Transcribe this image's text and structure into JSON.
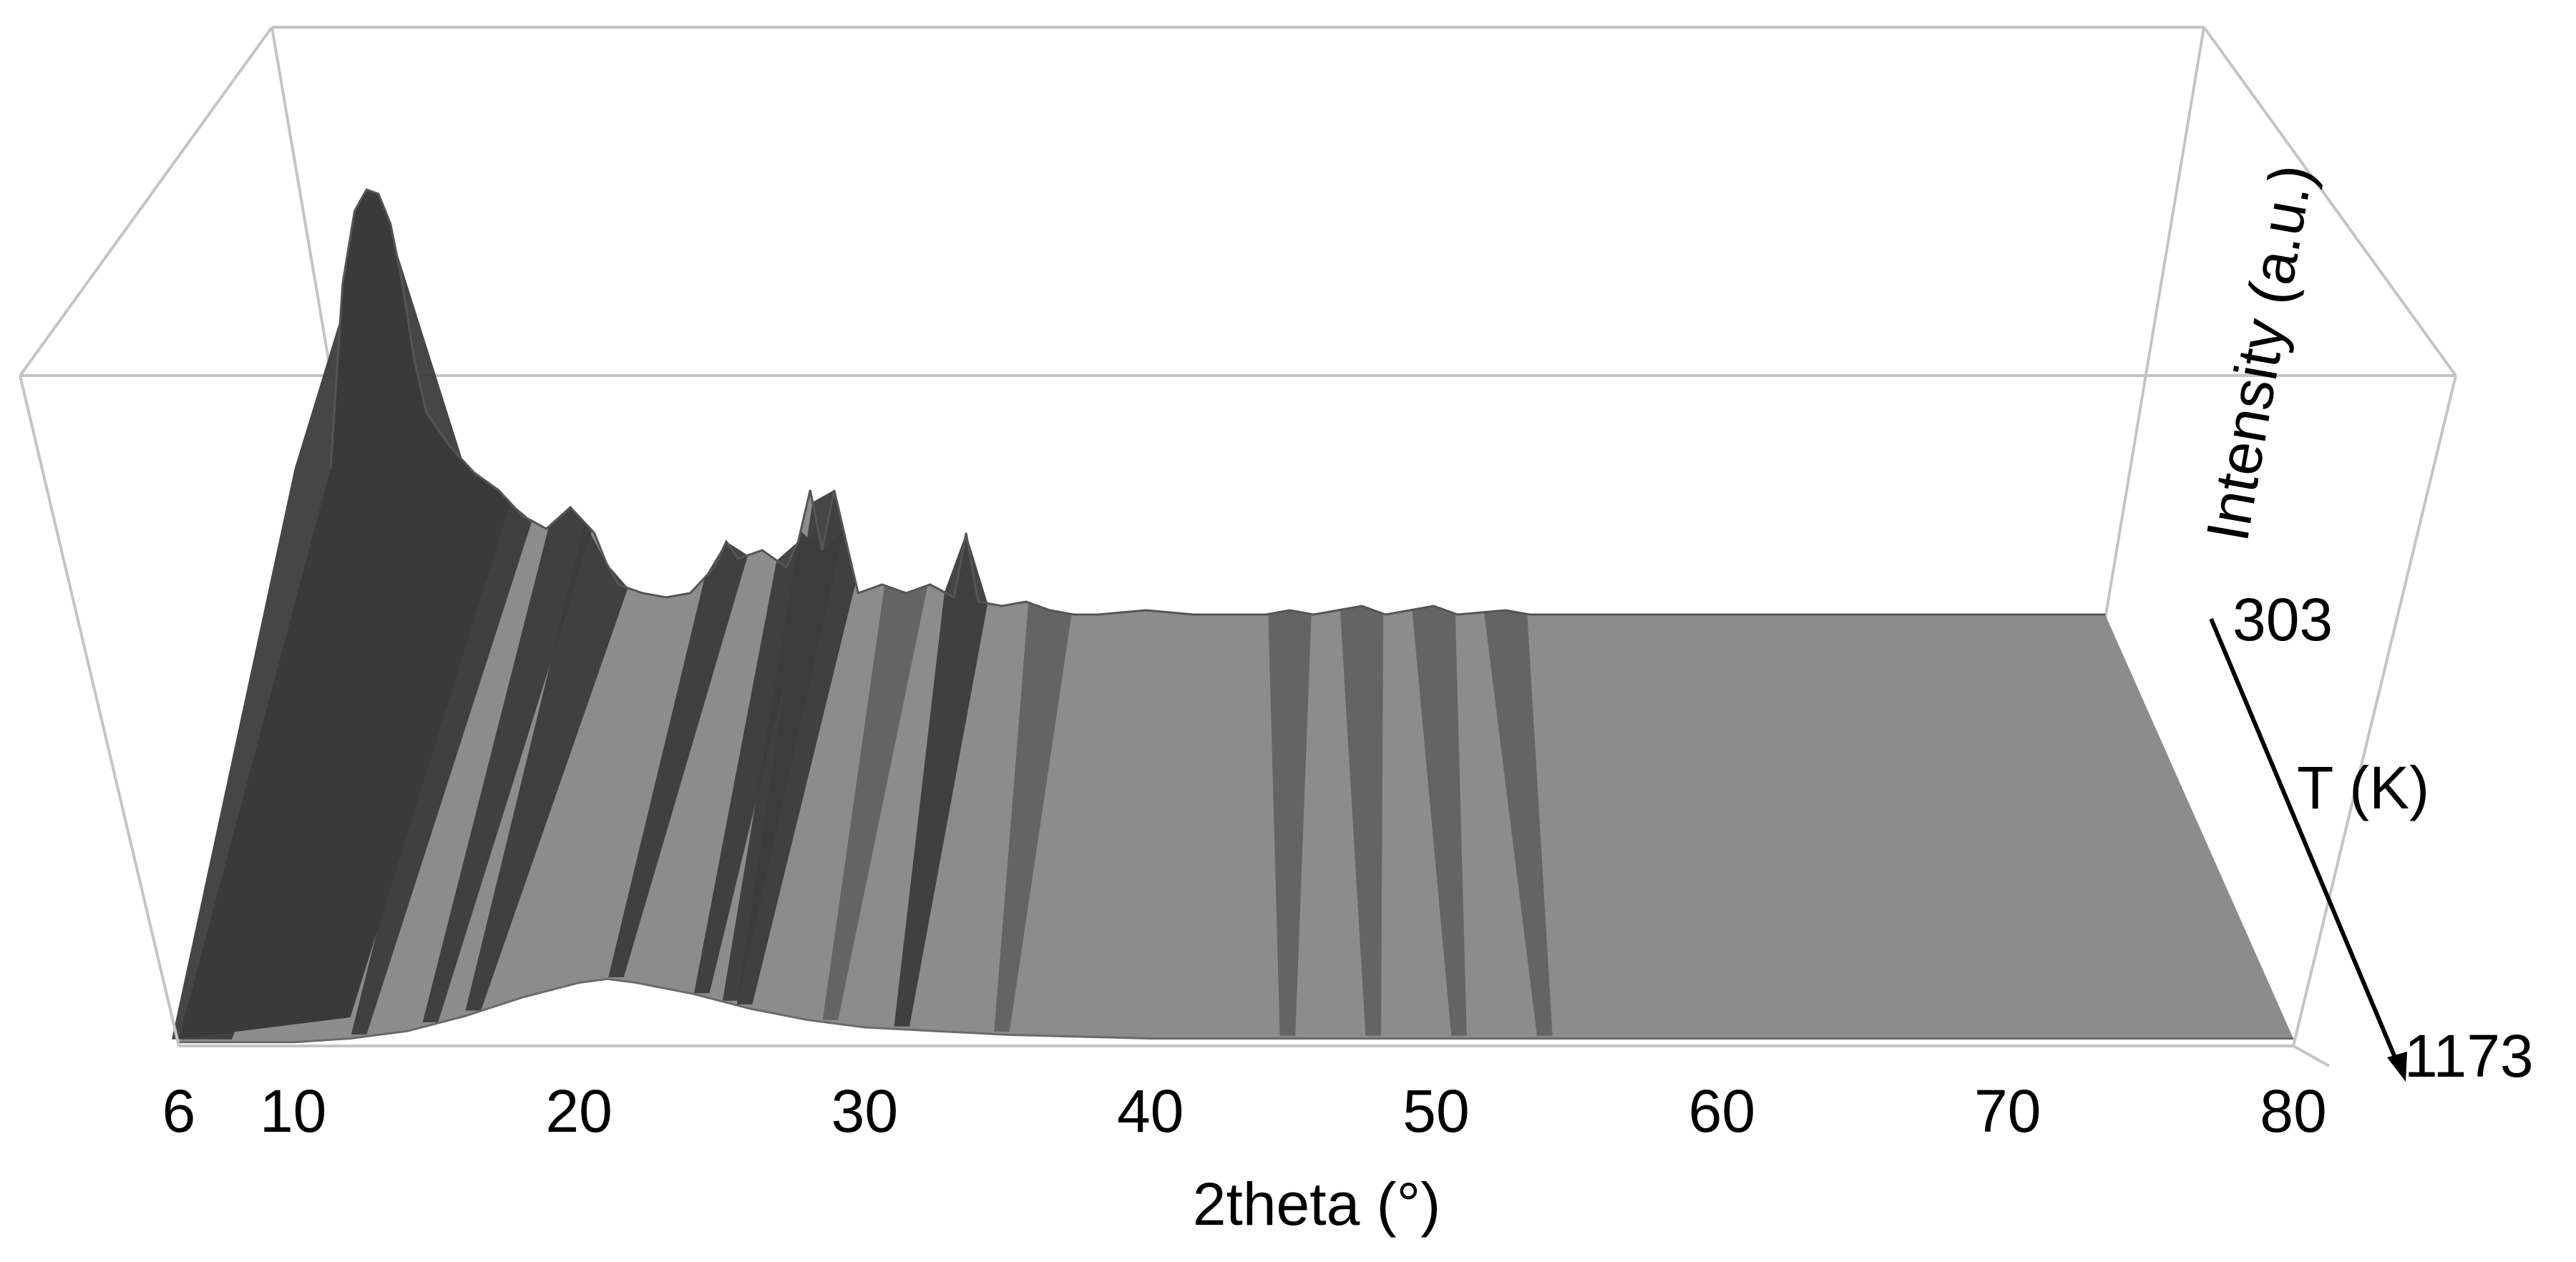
{
  "chart_data": {
    "type": "area",
    "subtype": "3d-waterfall-surface",
    "title": "",
    "xlabel": "2theta (°)",
    "ylabel": "T (K)",
    "zlabel": "Intensity (a.u.)",
    "x_ticks": [
      6,
      10,
      20,
      30,
      40,
      50,
      60,
      70,
      80
    ],
    "xlim": [
      6,
      80
    ],
    "t_ticks": [
      303,
      1173
    ],
    "tlim": [
      303,
      1173
    ],
    "color": "#8c8c8c",
    "peak_color": "#3a3a3a",
    "grid": false,
    "legend": "none",
    "back_profile_303K": {
      "x": [
        6,
        6.5,
        7,
        7.5,
        8,
        8.5,
        9,
        9.5,
        10,
        11,
        12,
        13,
        13.5,
        14,
        15,
        16,
        17,
        17.5,
        18,
        19,
        20,
        21,
        22,
        22.5,
        23,
        24,
        25,
        25.5,
        26,
        26.5,
        27,
        27.5,
        28,
        29,
        30,
        31,
        32,
        32.5,
        33,
        34,
        35,
        36,
        37,
        38,
        40,
        42,
        45,
        46,
        47,
        49,
        50,
        52,
        53,
        55,
        56,
        60,
        65,
        70,
        75,
        80
      ],
      "y": [
        0.35,
        0.78,
        0.95,
        1.0,
        0.99,
        0.92,
        0.78,
        0.6,
        0.48,
        0.4,
        0.34,
        0.3,
        0.27,
        0.24,
        0.21,
        0.26,
        0.2,
        0.13,
        0.08,
        0.06,
        0.05,
        0.06,
        0.12,
        0.18,
        0.14,
        0.16,
        0.12,
        0.18,
        0.3,
        0.16,
        0.3,
        0.18,
        0.06,
        0.08,
        0.06,
        0.08,
        0.05,
        0.2,
        0.04,
        0.03,
        0.04,
        0.02,
        0.01,
        0.01,
        0.02,
        0.01,
        0.01,
        0.02,
        0.01,
        0.03,
        0.01,
        0.03,
        0.01,
        0.02,
        0.01,
        0.01,
        0.01,
        0.01,
        0.01,
        0.01
      ]
    },
    "front_profile_1173K": {
      "x": [
        6,
        8,
        10,
        12,
        14,
        16,
        18,
        20,
        21,
        22,
        24,
        26,
        28,
        30,
        35,
        40,
        50,
        60,
        70,
        80
      ],
      "y": [
        0.01,
        0.01,
        0.01,
        0.02,
        0.04,
        0.08,
        0.13,
        0.17,
        0.18,
        0.17,
        0.14,
        0.1,
        0.07,
        0.05,
        0.03,
        0.02,
        0.02,
        0.02,
        0.02,
        0.02
      ]
    }
  }
}
